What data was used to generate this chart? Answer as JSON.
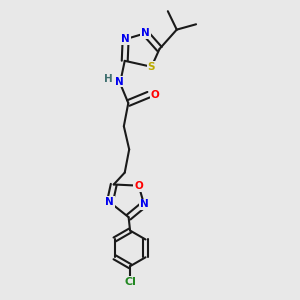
{
  "bg_color": "#e8e8e8",
  "bond_color": "#1a1a1a",
  "bond_width": 1.5,
  "atom_colors": {
    "N": "#0000ee",
    "O": "#ff0000",
    "S": "#bbaa00",
    "Cl": "#228822",
    "H": "#407070",
    "C": "#1a1a1a"
  },
  "font_size": 7.5
}
